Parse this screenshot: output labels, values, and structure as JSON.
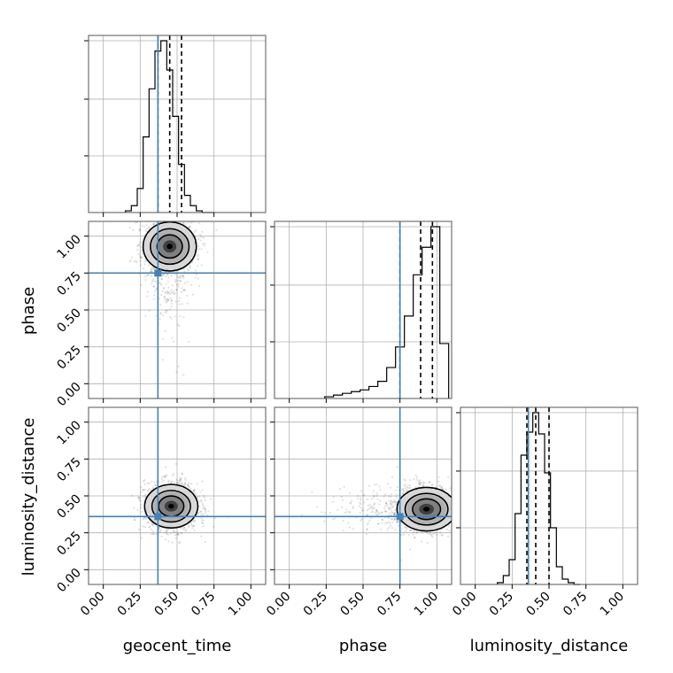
{
  "chart_data": {
    "type": "corner",
    "parameters": [
      "geocent_time",
      "phase",
      "luminosity_distance"
    ],
    "axis_labels": {
      "x": [
        "geocent_time",
        "phase",
        "luminosity_distance"
      ],
      "y": [
        "phase",
        "luminosity_distance"
      ]
    },
    "ticks": [
      0.0,
      0.25,
      0.5,
      0.75,
      1.0
    ],
    "tick_labels": [
      "0.00",
      "0.25",
      "0.50",
      "0.75",
      "1.00"
    ],
    "range": [
      -0.1,
      1.1
    ],
    "grid": true,
    "truths": [
      0.37,
      0.75,
      0.36
    ],
    "truth_color": "#4682b4",
    "quantiles": {
      "geocent_time": [
        0.37,
        0.45,
        0.53
      ],
      "phase": [
        0.75,
        0.89,
        0.97
      ],
      "luminosity_distance": [
        0.35,
        0.41,
        0.5
      ]
    },
    "histograms": {
      "geocent_time": {
        "bin_edges": [
          0.15,
          0.19,
          0.23,
          0.27,
          0.31,
          0.35,
          0.39,
          0.43,
          0.47,
          0.51,
          0.55,
          0.59,
          0.63,
          0.67,
          0.71,
          0.75
        ],
        "counts": [
          0.01,
          0.04,
          0.14,
          0.44,
          0.72,
          0.94,
          1.0,
          0.83,
          0.56,
          0.28,
          0.1,
          0.04,
          0.01,
          0.0,
          0.0
        ]
      },
      "phase": {
        "bin_edges": [
          0.24,
          0.3,
          0.36,
          0.42,
          0.48,
          0.54,
          0.6,
          0.66,
          0.72,
          0.78,
          0.84,
          0.9,
          0.96,
          1.02,
          1.08
        ],
        "counts": [
          0.01,
          0.02,
          0.03,
          0.04,
          0.05,
          0.07,
          0.1,
          0.18,
          0.3,
          0.48,
          0.72,
          0.88,
          1.0,
          0.32
        ]
      },
      "luminosity_distance": {
        "bin_edges": [
          0.15,
          0.19,
          0.23,
          0.27,
          0.31,
          0.35,
          0.39,
          0.43,
          0.47,
          0.51,
          0.55,
          0.59,
          0.63,
          0.67,
          0.71
        ],
        "counts": [
          0.01,
          0.05,
          0.14,
          0.4,
          0.73,
          0.86,
          0.97,
          0.85,
          0.63,
          0.32,
          0.1,
          0.03,
          0.01,
          0.0
        ]
      }
    },
    "density_2d": [
      {
        "x": "geocent_time",
        "y": "phase",
        "center": [
          0.45,
          0.93
        ],
        "sigma": [
          0.09,
          0.09
        ],
        "tail_y": 0.3
      },
      {
        "x": "geocent_time",
        "y": "luminosity_distance",
        "center": [
          0.46,
          0.43
        ],
        "sigma": [
          0.09,
          0.08
        ],
        "tail_y": 0.0
      },
      {
        "x": "phase",
        "y": "luminosity_distance",
        "center": [
          0.93,
          0.41
        ],
        "sigma": [
          0.1,
          0.08
        ],
        "tail_x": 0.35
      }
    ]
  }
}
